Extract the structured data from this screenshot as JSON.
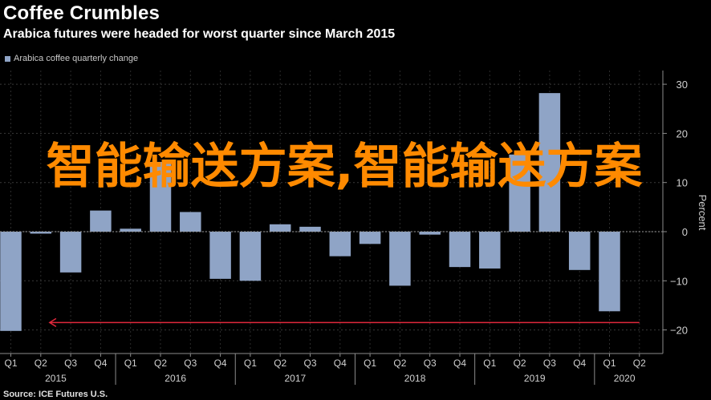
{
  "title": "Coffee Crumbles",
  "subtitle": "Arabica futures were headed for worst quarter since March 2015",
  "source": "Source: ICE Futures U.S.",
  "watermark": "智能输送方案,智能输送方案",
  "colors": {
    "bar": "#8fa4c6",
    "background": "#000000",
    "axis": "#8c8c8c",
    "arrow": "#e0283c",
    "watermark": "#ff8a00"
  },
  "chart_data": {
    "type": "bar",
    "legend": "Arabica coffee quarterly change",
    "legend_position": "top-left",
    "ylabel": "Percent",
    "ylim": [
      -25,
      32
    ],
    "yticks": [
      -20,
      -10,
      0,
      10,
      20,
      30
    ],
    "grid": true,
    "categories": [
      "Q1",
      "Q2",
      "Q3",
      "Q4",
      "Q1",
      "Q2",
      "Q3",
      "Q4",
      "Q1",
      "Q2",
      "Q3",
      "Q4",
      "Q1",
      "Q2",
      "Q3",
      "Q4",
      "Q1",
      "Q2",
      "Q3",
      "Q4",
      "Q1",
      "Q2"
    ],
    "years": [
      {
        "label": "2015",
        "start": 0,
        "end": 3
      },
      {
        "label": "2016",
        "start": 4,
        "end": 7
      },
      {
        "label": "2017",
        "start": 8,
        "end": 11
      },
      {
        "label": "2018",
        "start": 12,
        "end": 15
      },
      {
        "label": "2019",
        "start": 16,
        "end": 19
      },
      {
        "label": "2020",
        "start": 20,
        "end": 21
      }
    ],
    "series": [
      {
        "name": "Arabica coffee quarterly change",
        "values": [
          -20.2,
          -0.4,
          -8.3,
          4.3,
          0.6,
          14.2,
          4.0,
          -9.6,
          -10.0,
          1.5,
          1.0,
          -5.0,
          -2.5,
          -11.0,
          -0.6,
          -7.2,
          -7.5,
          15.7,
          28.2,
          -7.8,
          -16.2,
          null
        ]
      }
    ],
    "annotations": [
      {
        "type": "arrow",
        "from_x": 21,
        "to_x": 0.6,
        "y": -18.5
      }
    ]
  }
}
